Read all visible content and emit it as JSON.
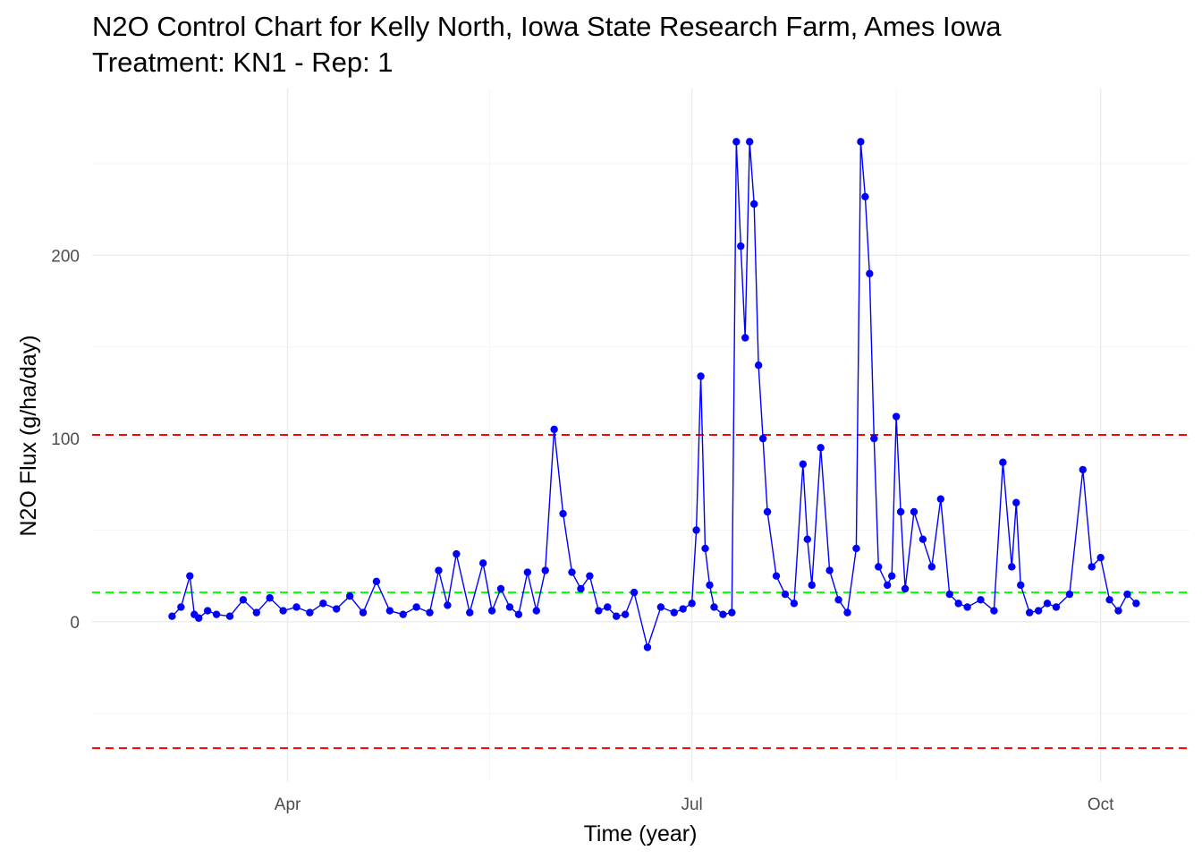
{
  "chart_data": {
    "type": "line",
    "title": "N2O Control Chart for Kelly North, Iowa State Research Farm, Ames Iowa",
    "subtitle": "Treatment: KN1 - Rep: 1",
    "xlabel": "Time (year)",
    "ylabel": "N2O Flux (g/ha/day)",
    "x_ticks": [
      "Apr",
      "Jul",
      "Oct"
    ],
    "x_tick_dates": [
      "2023-04-01",
      "2023-07-01",
      "2023-10-01"
    ],
    "xlim": [
      "2023-02-16",
      "2023-10-21"
    ],
    "y_ticks": [
      0,
      100,
      200
    ],
    "ylim": [
      -87,
      291
    ],
    "grid": true,
    "legend": "none",
    "series": [
      {
        "color": "#0000ff",
        "marker": "circle",
        "x": [
          "2023-03-06",
          "2023-03-08",
          "2023-03-10",
          "2023-03-11",
          "2023-03-12",
          "2023-03-14",
          "2023-03-16",
          "2023-03-19",
          "2023-03-22",
          "2023-03-25",
          "2023-03-28",
          "2023-03-31",
          "2023-04-03",
          "2023-04-06",
          "2023-04-09",
          "2023-04-12",
          "2023-04-15",
          "2023-04-18",
          "2023-04-21",
          "2023-04-24",
          "2023-04-27",
          "2023-04-30",
          "2023-05-03",
          "2023-05-05",
          "2023-05-07",
          "2023-05-09",
          "2023-05-12",
          "2023-05-15",
          "2023-05-17",
          "2023-05-19",
          "2023-05-21",
          "2023-05-23",
          "2023-05-25",
          "2023-05-27",
          "2023-05-29",
          "2023-05-31",
          "2023-06-02",
          "2023-06-04",
          "2023-06-06",
          "2023-06-08",
          "2023-06-10",
          "2023-06-12",
          "2023-06-14",
          "2023-06-16",
          "2023-06-18",
          "2023-06-21",
          "2023-06-24",
          "2023-06-27",
          "2023-06-29",
          "2023-07-01",
          "2023-07-02",
          "2023-07-03",
          "2023-07-04",
          "2023-07-05",
          "2023-07-06",
          "2023-07-08",
          "2023-07-10",
          "2023-07-11",
          "2023-07-12",
          "2023-07-13",
          "2023-07-14",
          "2023-07-15",
          "2023-07-16",
          "2023-07-17",
          "2023-07-18",
          "2023-07-20",
          "2023-07-22",
          "2023-07-24",
          "2023-07-26",
          "2023-07-27",
          "2023-07-28",
          "2023-07-30",
          "2023-08-01",
          "2023-08-03",
          "2023-08-05",
          "2023-08-07",
          "2023-08-08",
          "2023-08-09",
          "2023-08-10",
          "2023-08-11",
          "2023-08-12",
          "2023-08-14",
          "2023-08-15",
          "2023-08-16",
          "2023-08-17",
          "2023-08-18",
          "2023-08-20",
          "2023-08-22",
          "2023-08-24",
          "2023-08-26",
          "2023-08-28",
          "2023-08-30",
          "2023-09-01",
          "2023-09-04",
          "2023-09-07",
          "2023-09-09",
          "2023-09-11",
          "2023-09-12",
          "2023-09-13",
          "2023-09-15",
          "2023-09-17",
          "2023-09-19",
          "2023-09-21",
          "2023-09-24",
          "2023-09-27",
          "2023-09-29",
          "2023-10-01",
          "2023-10-03",
          "2023-10-05",
          "2023-10-07",
          "2023-10-09"
        ],
        "y": [
          3,
          8,
          25,
          4,
          2,
          6,
          4,
          3,
          12,
          5,
          13,
          6,
          8,
          5,
          10,
          7,
          14,
          5,
          22,
          6,
          4,
          8,
          5,
          28,
          9,
          37,
          5,
          32,
          6,
          18,
          8,
          4,
          27,
          6,
          28,
          105,
          59,
          27,
          18,
          25,
          6,
          8,
          3,
          4,
          16,
          -14,
          8,
          5,
          7,
          10,
          50,
          134,
          40,
          20,
          8,
          4,
          5,
          262,
          205,
          155,
          262,
          228,
          140,
          100,
          60,
          25,
          15,
          10,
          86,
          45,
          20,
          95,
          28,
          12,
          5,
          40,
          262,
          232,
          190,
          100,
          30,
          20,
          25,
          112,
          60,
          18,
          60,
          45,
          30,
          67,
          15,
          10,
          8,
          12,
          6,
          87,
          30,
          65,
          20,
          5,
          6,
          10,
          8,
          15,
          83,
          30,
          35,
          12,
          6,
          15,
          10
        ]
      }
    ],
    "reference_lines": [
      {
        "y": 16,
        "color": "#00ff00",
        "style": "dashed"
      },
      {
        "y": 102,
        "color": "#ff0000",
        "style": "dashed"
      },
      {
        "y": -69,
        "color": "#ff0000",
        "style": "dashed"
      }
    ]
  }
}
